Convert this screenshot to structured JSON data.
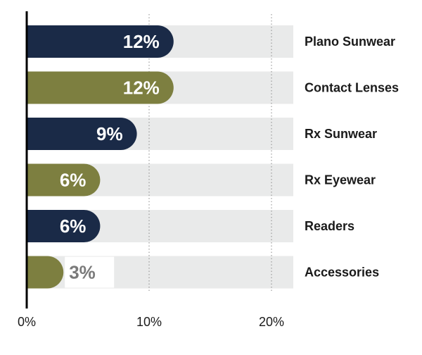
{
  "chart_data": {
    "type": "bar",
    "orientation": "horizontal",
    "categories": [
      "Plano Sunwear",
      "Contact Lenses",
      "Rx Sunwear",
      "Rx Eyewear",
      "Readers",
      "Accessories"
    ],
    "values": [
      12,
      12,
      9,
      6,
      6,
      3
    ],
    "value_labels": [
      "12%",
      "12%",
      "9%",
      "6%",
      "6%",
      "3%"
    ],
    "bar_colors": [
      "#1a2a47",
      "#7d7f40",
      "#1a2a47",
      "#7d7f40",
      "#1a2a47",
      "#7d7f40"
    ],
    "track_color": "#e9eaea",
    "x_ticks": [
      0,
      10,
      20
    ],
    "x_tick_labels": [
      "0%",
      "10%",
      "20%"
    ],
    "xlim": [
      0,
      22
    ],
    "grid": "vertical dotted",
    "title": "",
    "xlabel": "",
    "ylabel": ""
  }
}
